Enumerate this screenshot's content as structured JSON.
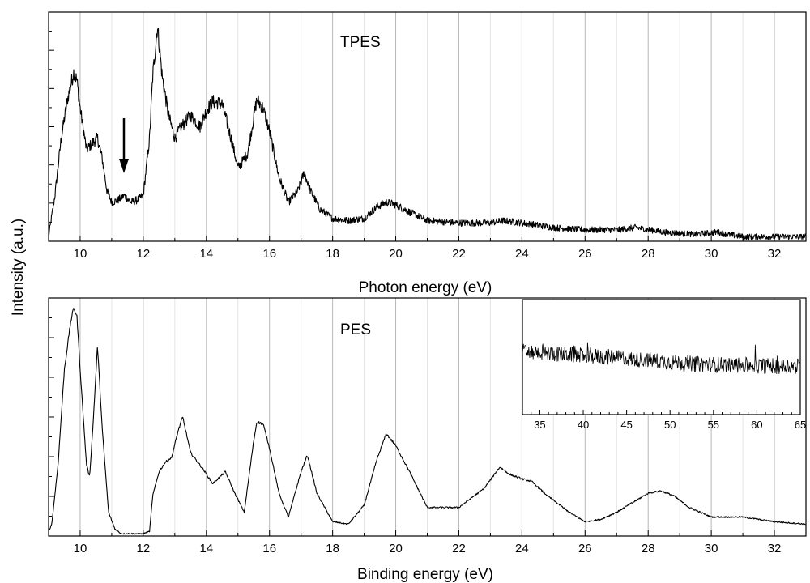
{
  "chart_data": [
    {
      "type": "line",
      "title": "TPES",
      "xlabel": "Photon energy (eV)",
      "ylabel": "Intensity (a.u.)",
      "xlim": [
        9,
        33
      ],
      "ylim": [
        0,
        1
      ],
      "x_ticks": [
        10,
        12,
        14,
        16,
        18,
        20,
        22,
        24,
        26,
        28,
        30,
        32
      ],
      "y_tick_labels": false,
      "grid": "vertical",
      "series": [
        {
          "x": [
            9.0,
            9.2,
            9.4,
            9.6,
            9.8,
            9.9,
            10.0,
            10.2,
            10.4,
            10.55,
            10.7,
            10.85,
            11.0,
            11.2,
            11.4,
            11.6,
            11.8,
            12.0,
            12.2,
            12.3,
            12.45,
            12.6,
            12.8,
            13.0,
            13.2,
            13.5,
            13.8,
            14.0,
            14.2,
            14.5,
            14.8,
            15.0,
            15.3,
            15.6,
            15.8,
            16.0,
            16.3,
            16.6,
            16.9,
            17.1,
            17.3,
            17.6,
            18.0,
            18.5,
            19.0,
            19.4,
            19.7,
            20.0,
            20.4,
            21.0,
            22.0,
            23.0,
            23.4,
            24.0,
            25.0,
            26.0,
            27.0,
            27.6,
            28.5,
            29.5,
            30.2,
            30.5,
            31.0,
            32.0,
            33.0
          ],
          "y": [
            0.02,
            0.2,
            0.45,
            0.62,
            0.74,
            0.7,
            0.58,
            0.4,
            0.43,
            0.45,
            0.36,
            0.22,
            0.17,
            0.18,
            0.2,
            0.17,
            0.18,
            0.2,
            0.45,
            0.72,
            0.94,
            0.72,
            0.55,
            0.45,
            0.5,
            0.55,
            0.5,
            0.57,
            0.61,
            0.6,
            0.44,
            0.32,
            0.38,
            0.62,
            0.58,
            0.48,
            0.28,
            0.17,
            0.22,
            0.3,
            0.22,
            0.14,
            0.1,
            0.09,
            0.1,
            0.15,
            0.17,
            0.16,
            0.13,
            0.09,
            0.08,
            0.08,
            0.09,
            0.08,
            0.06,
            0.05,
            0.05,
            0.06,
            0.04,
            0.03,
            0.04,
            0.03,
            0.02,
            0.02,
            0.02
          ]
        }
      ],
      "annotations": [
        "arrow at 11.4 eV"
      ]
    },
    {
      "type": "line",
      "title": "PES",
      "xlabel": "Binding energy (eV)",
      "ylabel": "Intensity (a.u.)",
      "xlim": [
        9,
        33
      ],
      "ylim": [
        0,
        1
      ],
      "x_ticks": [
        10,
        12,
        14,
        16,
        18,
        20,
        22,
        24,
        26,
        28,
        30,
        32
      ],
      "y_tick_labels": false,
      "grid": "vertical",
      "series": [
        {
          "x": [
            9.0,
            9.1,
            9.3,
            9.5,
            9.7,
            9.8,
            9.9,
            10.0,
            10.2,
            10.3,
            10.4,
            10.55,
            10.7,
            10.9,
            11.1,
            11.3,
            11.6,
            12.0,
            12.2,
            12.3,
            12.5,
            12.7,
            12.9,
            13.1,
            13.25,
            13.5,
            13.9,
            14.2,
            14.6,
            14.9,
            15.2,
            15.5,
            15.6,
            15.8,
            16.0,
            16.3,
            16.6,
            17.0,
            17.2,
            17.5,
            18.0,
            18.5,
            19.0,
            19.4,
            19.7,
            20.0,
            20.4,
            21.0,
            22.0,
            22.8,
            23.3,
            23.6,
            24.0,
            24.3,
            24.8,
            25.5,
            26.0,
            26.5,
            27.0,
            27.5,
            28.0,
            28.4,
            28.8,
            29.3,
            30.0,
            31.0,
            32.0,
            33.0
          ],
          "y": [
            0.02,
            0.05,
            0.3,
            0.7,
            0.9,
            0.96,
            0.92,
            0.7,
            0.3,
            0.25,
            0.45,
            0.8,
            0.45,
            0.1,
            0.03,
            0.01,
            0.01,
            0.01,
            0.02,
            0.17,
            0.27,
            0.31,
            0.33,
            0.44,
            0.5,
            0.35,
            0.28,
            0.22,
            0.27,
            0.18,
            0.1,
            0.4,
            0.48,
            0.47,
            0.37,
            0.18,
            0.08,
            0.27,
            0.34,
            0.18,
            0.06,
            0.05,
            0.13,
            0.32,
            0.43,
            0.38,
            0.28,
            0.12,
            0.12,
            0.2,
            0.29,
            0.26,
            0.24,
            0.23,
            0.17,
            0.1,
            0.06,
            0.07,
            0.1,
            0.14,
            0.18,
            0.19,
            0.17,
            0.12,
            0.08,
            0.08,
            0.06,
            0.05
          ]
        }
      ],
      "inset": {
        "xlim": [
          33,
          65
        ],
        "x_ticks": [
          35,
          40,
          45,
          50,
          55,
          60,
          65
        ],
        "series": [
          {
            "x": [
              33,
              38,
              43,
              48,
              53,
              58,
              63,
              65
            ],
            "y": [
              0.55,
              0.52,
              0.5,
              0.47,
              0.44,
              0.43,
              0.42,
              0.42
            ]
          }
        ]
      }
    }
  ]
}
